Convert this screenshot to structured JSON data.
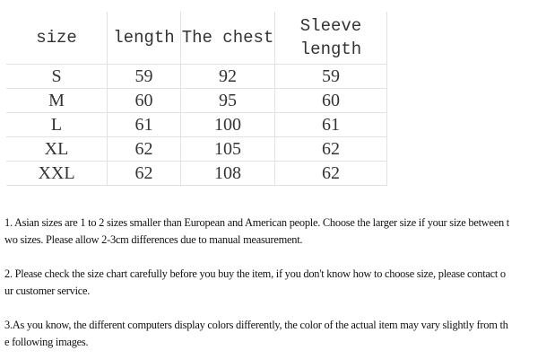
{
  "table": {
    "headers": [
      "size",
      "length",
      "The chest",
      "Sleeve length"
    ],
    "header_sleeve_lines": [
      "Sleeve",
      "length"
    ],
    "rows": [
      [
        "S",
        "59",
        "92",
        "59"
      ],
      [
        "M",
        "60",
        "95",
        "60"
      ],
      [
        "L",
        "61",
        "100",
        "61"
      ],
      [
        "XL",
        "62",
        "105",
        "62"
      ],
      [
        "XXL",
        "62",
        "108",
        "62"
      ]
    ]
  },
  "notes": [
    {
      "lines": [
        "1. Asian sizes are 1 to 2 sizes smaller than European and American people. Choose the larger size if your size between t",
        "wo sizes. Please allow 2-3cm differences due to manual measurement."
      ]
    },
    {
      "lines": [
        "2. Please check the size chart carefully before you buy the item, if you don't know how to choose size, please contact o",
        "ur customer service."
      ]
    },
    {
      "lines": [
        "3.As you know, the different computers display colors differently, the color of the actual item may vary slightly from th",
        "e following images."
      ]
    }
  ]
}
